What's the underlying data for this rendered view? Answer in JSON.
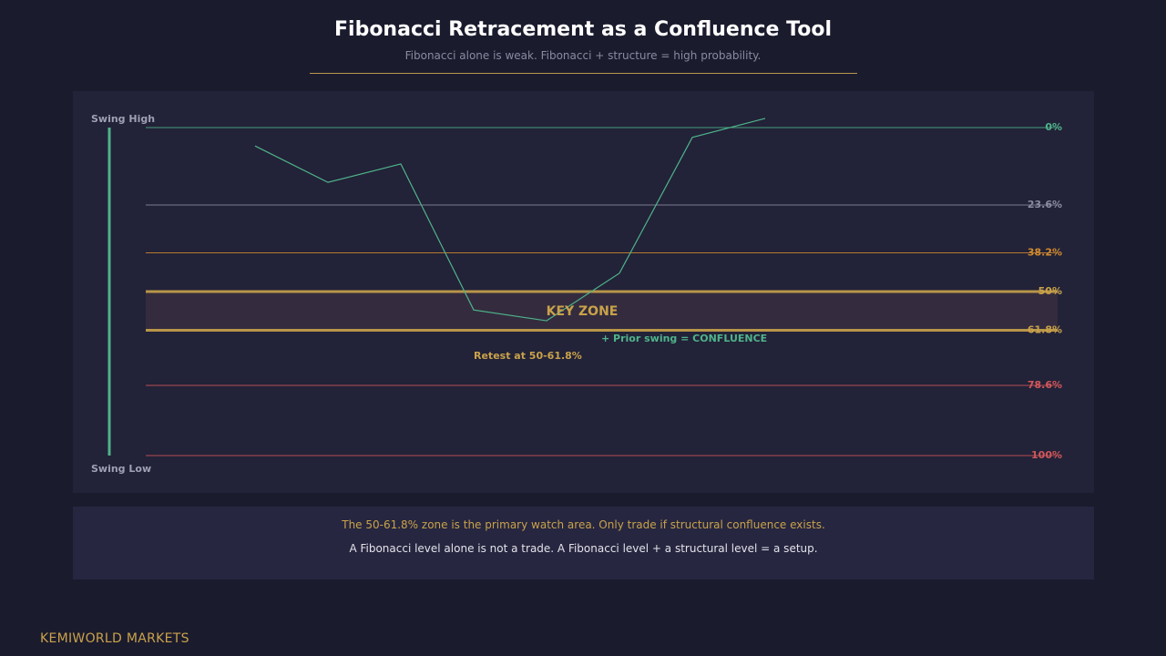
{
  "header": {
    "title": "Fibonacci Retracement as a Confluence Tool",
    "subtitle": "Fibonacci alone is weak. Fibonacci + structure = high probability."
  },
  "chart_data": {
    "type": "line",
    "swing_high_label": "Swing High",
    "swing_low_label": "Swing Low",
    "ylim": [
      0,
      100
    ],
    "y_inverted": true,
    "levels": [
      {
        "label": "0%",
        "value": 0,
        "color": "#4fb38a",
        "bold": false
      },
      {
        "label": "23.6%",
        "value": 23.6,
        "color": "#8a8aa0",
        "bold": false
      },
      {
        "label": "38.2%",
        "value": 38.2,
        "color": "#d08a2e",
        "bold": false
      },
      {
        "label": "50%",
        "value": 50,
        "color": "#c9a24a",
        "bold": true
      },
      {
        "label": "61.8%",
        "value": 61.8,
        "color": "#c9a24a",
        "bold": true
      },
      {
        "label": "78.6%",
        "value": 78.6,
        "color": "#d0575a",
        "bold": false
      },
      {
        "label": "100%",
        "value": 100,
        "color": "#d0575a",
        "bold": false
      }
    ],
    "zone": {
      "from": 50,
      "to": 61.8,
      "label": "KEY ZONE"
    },
    "price_path": {
      "x": [
        1,
        2,
        3,
        4,
        5,
        6,
        7,
        8
      ],
      "y": [
        5.6,
        16.7,
        11.1,
        55.6,
        58.9,
        44.4,
        3.0,
        -2.8
      ]
    },
    "annotations": [
      {
        "text": "Retest at 50-61.8%",
        "color": "#c9a24a"
      },
      {
        "text": "+ Prior swing = CONFLUENCE",
        "color": "#4fb38a"
      }
    ]
  },
  "notes": {
    "line1": "The 50-61.8% zone is the primary watch area. Only trade if structural confluence exists.",
    "line2": "A Fibonacci level alone is not a trade. A Fibonacci level + a structural level = a setup."
  },
  "footer": {
    "brand": "KEMIWORLD MARKETS"
  },
  "colors": {
    "background": "#1b1b2e",
    "panel": "#222238",
    "accent_green": "#4fb38a",
    "accent_gold": "#c9a24a"
  }
}
